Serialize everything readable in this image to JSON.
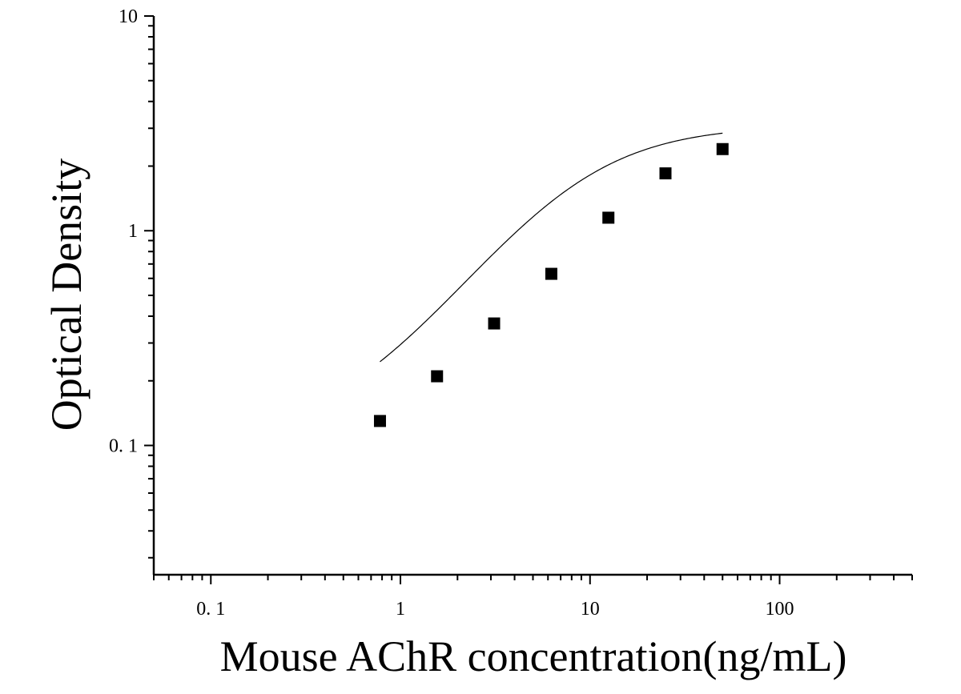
{
  "chart_data": {
    "type": "scatter",
    "xlabel": "Mouse AChR concentration(ng/mL)",
    "ylabel": "Optical Density",
    "xscale": "log",
    "yscale": "log",
    "xlim": [
      0.05,
      500
    ],
    "ylim": [
      0.025,
      10
    ],
    "x_ticks": [
      0.1,
      1,
      10,
      100
    ],
    "x_tick_labels": [
      "0. 1",
      "1",
      "10",
      "100"
    ],
    "y_ticks": [
      0.1,
      1,
      10
    ],
    "y_tick_labels": [
      "0. 1",
      "1",
      "10"
    ],
    "grid": false,
    "legend": "none",
    "marker": "square",
    "color": "#000000",
    "fit_curve": "four-parameter logistic",
    "points": [
      {
        "x": 0.78,
        "y": 0.13
      },
      {
        "x": 1.56,
        "y": 0.21
      },
      {
        "x": 3.12,
        "y": 0.37
      },
      {
        "x": 6.25,
        "y": 0.63
      },
      {
        "x": 12.5,
        "y": 1.15
      },
      {
        "x": 25,
        "y": 1.85
      },
      {
        "x": 50,
        "y": 2.4
      }
    ]
  }
}
